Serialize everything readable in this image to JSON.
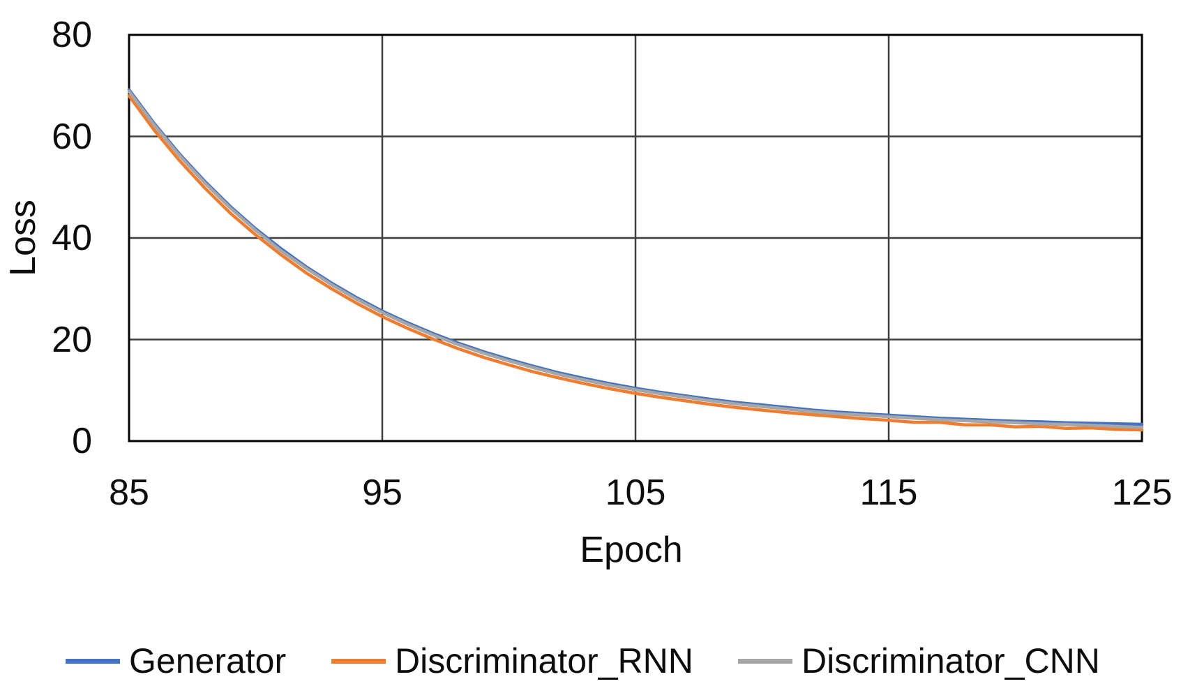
{
  "chart_data": {
    "type": "line",
    "title": "",
    "xlabel": "Epoch",
    "ylabel": "Loss",
    "xlim": [
      85,
      125
    ],
    "ylim": [
      0,
      80
    ],
    "xticks": [
      85,
      95,
      105,
      115,
      125
    ],
    "yticks": [
      0,
      20,
      40,
      60,
      80
    ],
    "grid": true,
    "legend_position": "bottom",
    "x": [
      85,
      86,
      87,
      88,
      89,
      90,
      91,
      92,
      93,
      94,
      95,
      96,
      97,
      98,
      99,
      100,
      101,
      102,
      103,
      104,
      105,
      106,
      107,
      108,
      109,
      110,
      111,
      112,
      113,
      114,
      115,
      116,
      117,
      118,
      119,
      120,
      121,
      122,
      123,
      124,
      125
    ],
    "series": [
      {
        "name": "Generator",
        "color": "#4472C4",
        "values": [
          69.2,
          62.5,
          56.5,
          51.1,
          46.2,
          41.8,
          37.9,
          34.3,
          31.1,
          28.2,
          25.6,
          23.3,
          21.2,
          19.3,
          17.6,
          16.1,
          14.7,
          13.4,
          12.3,
          11.3,
          10.4,
          9.6,
          8.9,
          8.2,
          7.6,
          7.1,
          6.6,
          6.1,
          5.7,
          5.4,
          5.1,
          4.8,
          4.5,
          4.3,
          4.1,
          3.9,
          3.8,
          3.6,
          3.5,
          3.4,
          3.3
        ]
      },
      {
        "name": "Discriminator_RNN",
        "color": "#ED7D31",
        "values": [
          68.0,
          61.2,
          55.2,
          49.8,
          44.9,
          40.6,
          36.7,
          33.1,
          30.0,
          27.1,
          24.5,
          22.2,
          20.1,
          18.2,
          16.5,
          15.0,
          13.6,
          12.4,
          11.3,
          10.3,
          9.4,
          8.6,
          7.9,
          7.2,
          6.6,
          6.1,
          5.6,
          5.2,
          4.8,
          4.4,
          4.1,
          3.7,
          3.7,
          3.2,
          3.2,
          2.8,
          2.9,
          2.5,
          2.6,
          2.3,
          2.2
        ]
      },
      {
        "name": "Discriminator_CNN",
        "color": "#A6A6A6",
        "values": [
          68.9,
          62.2,
          56.2,
          50.8,
          45.9,
          41.5,
          37.5,
          34.0,
          30.8,
          27.9,
          25.3,
          23.0,
          20.9,
          19.0,
          17.3,
          15.8,
          14.4,
          13.1,
          12.0,
          11.0,
          10.1,
          9.3,
          8.6,
          7.9,
          7.3,
          6.8,
          6.3,
          5.8,
          5.4,
          5.1,
          4.8,
          4.5,
          4.2,
          4.0,
          3.8,
          3.6,
          3.4,
          3.3,
          3.1,
          2.9,
          2.7
        ]
      }
    ]
  },
  "style": {
    "grid_color": "#3f3f3f",
    "border_color": "#000000",
    "text_color": "#0d0d0d",
    "line_width": 4.5
  }
}
